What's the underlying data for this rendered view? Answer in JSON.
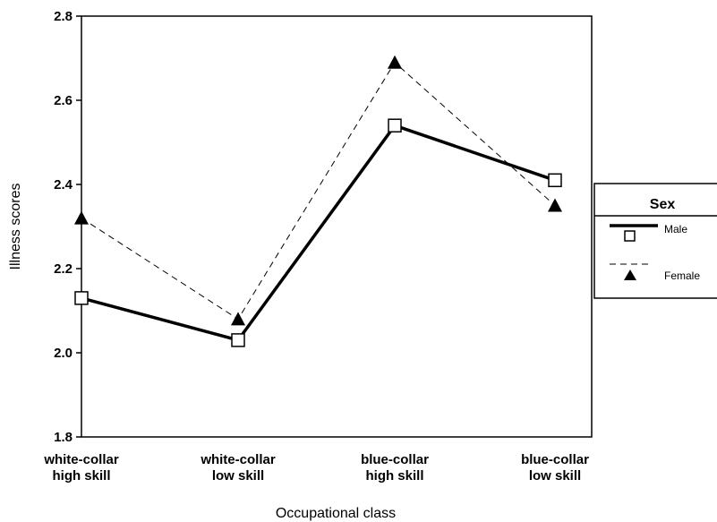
{
  "chart_data": {
    "type": "line",
    "categories": [
      [
        "white-collar",
        "high skill"
      ],
      [
        "white-collar",
        "low skill"
      ],
      [
        "blue-collar",
        "high skill"
      ],
      [
        "blue-collar",
        "low skill"
      ]
    ],
    "series": [
      {
        "name": "Male",
        "values": [
          2.13,
          2.03,
          2.54,
          2.41
        ],
        "line_style": "solid",
        "marker": "open-square"
      },
      {
        "name": "Female",
        "values": [
          2.32,
          2.08,
          2.69,
          2.35
        ],
        "line_style": "dashed",
        "marker": "filled-triangle"
      }
    ],
    "xlabel": "Occupational class",
    "ylabel": "Illness scores",
    "ylim": [
      1.8,
      2.8
    ],
    "yticks": [
      "1.8",
      "2.0",
      "2.2",
      "2.4",
      "2.6",
      "2.8"
    ],
    "grid": false,
    "legend": {
      "title": "Sex",
      "position": "right"
    }
  }
}
